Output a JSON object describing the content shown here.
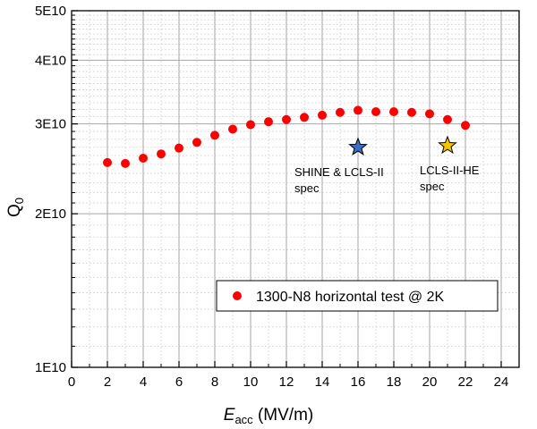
{
  "chart_data": {
    "type": "scatter",
    "x_axis": {
      "label_main": "E",
      "label_sub": "acc",
      "label_unit": " (MV/m)",
      "range": [
        0,
        25
      ],
      "ticks": [
        0,
        2,
        4,
        6,
        8,
        10,
        12,
        14,
        16,
        18,
        20,
        22,
        24
      ],
      "tick_labels": [
        "0",
        "2",
        "4",
        "6",
        "8",
        "10",
        "12",
        "14",
        "16",
        "18",
        "20",
        "22",
        "24"
      ]
    },
    "y_axis": {
      "label_main": "Q",
      "label_sub": "0",
      "scale": "log",
      "range": [
        10000000000.0,
        50000000000.0
      ],
      "ticks": [
        10000000000.0,
        20000000000.0,
        30000000000.0,
        40000000000.0,
        50000000000.0
      ],
      "tick_labels": [
        "1E10",
        "2E10",
        "3E10",
        "4E10",
        "5E10"
      ]
    },
    "grid": true,
    "legend_position": "lower-right",
    "series": [
      {
        "name": "1300-N8 horizontal test @ 2K",
        "color": "#ff0000",
        "marker": "circle",
        "points": [
          {
            "x": 2,
            "y": 25200000000.0
          },
          {
            "x": 3,
            "y": 25100000000.0
          },
          {
            "x": 4,
            "y": 25700000000.0
          },
          {
            "x": 5,
            "y": 26200000000.0
          },
          {
            "x": 6,
            "y": 26900000000.0
          },
          {
            "x": 7,
            "y": 27600000000.0
          },
          {
            "x": 8,
            "y": 28500000000.0
          },
          {
            "x": 9,
            "y": 29300000000.0
          },
          {
            "x": 10,
            "y": 29900000000.0
          },
          {
            "x": 11,
            "y": 30300000000.0
          },
          {
            "x": 12,
            "y": 30600000000.0
          },
          {
            "x": 13,
            "y": 30900000000.0
          },
          {
            "x": 14,
            "y": 31200000000.0
          },
          {
            "x": 15,
            "y": 31600000000.0
          },
          {
            "x": 16,
            "y": 31900000000.0
          },
          {
            "x": 17,
            "y": 31700000000.0
          },
          {
            "x": 18,
            "y": 31700000000.0
          },
          {
            "x": 19,
            "y": 31600000000.0
          },
          {
            "x": 20,
            "y": 31400000000.0
          },
          {
            "x": 21,
            "y": 30600000000.0
          },
          {
            "x": 22,
            "y": 29800000000.0
          }
        ]
      }
    ],
    "markers": [
      {
        "x": 16,
        "y": 27000000000.0,
        "shape": "star",
        "color": "#3a6fc4",
        "label_lines": [
          "SHINE & LCLS-II",
          "spec"
        ]
      },
      {
        "x": 21,
        "y": 27200000000.0,
        "shape": "star",
        "color": "#f5c500",
        "label_lines": [
          "LCLS-II-HE",
          "spec"
        ]
      }
    ]
  }
}
